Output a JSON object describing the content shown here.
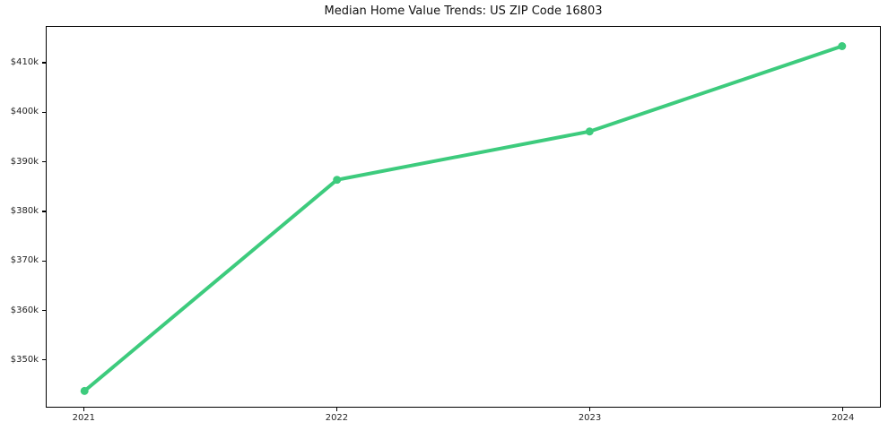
{
  "chart_data": {
    "type": "line",
    "title": "Median Home Value Trends: US ZIP Code 16803",
    "xlabel": "",
    "ylabel": "",
    "x": [
      2021,
      2022,
      2023,
      2024
    ],
    "series": [
      {
        "name": "Median Home Value",
        "values": [
          343600,
          386400,
          396200,
          413500
        ]
      }
    ],
    "xlim": [
      2020.85,
      2024.15
    ],
    "ylim": [
      340400,
      417400
    ],
    "xticks": {
      "values": [
        2021,
        2022,
        2023,
        2024
      ],
      "labels": [
        "2021",
        "2022",
        "2023",
        "2024"
      ]
    },
    "yticks": {
      "values": [
        350000,
        360000,
        370000,
        380000,
        390000,
        400000,
        410000
      ],
      "labels": [
        "$350k",
        "$360k",
        "$370k",
        "$380k",
        "$390k",
        "$400k",
        "$410k"
      ]
    },
    "grid": false,
    "legend": false,
    "line_color": "#3dcb7d",
    "marker": "circle",
    "frame_color": "#000000",
    "background_color": "#ffffff"
  }
}
